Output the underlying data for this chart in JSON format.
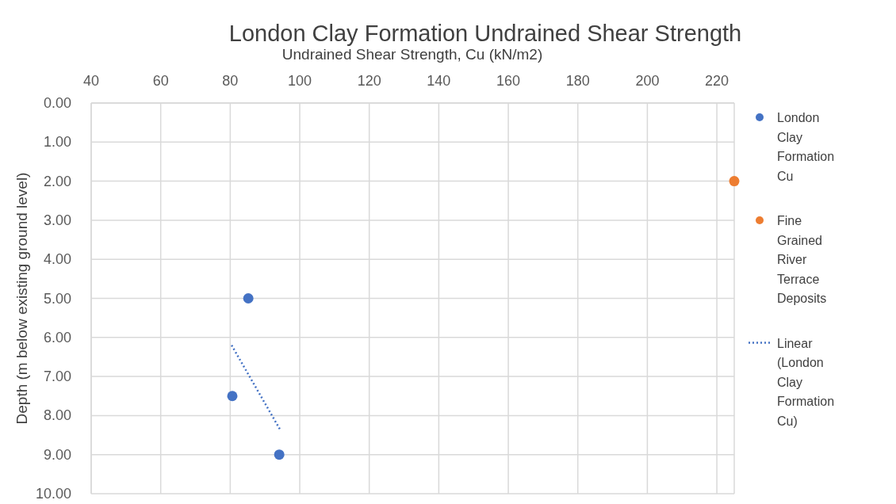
{
  "chart_data": {
    "type": "scatter",
    "title": "London Clay Formation Undrained Shear Strength",
    "xlabel": "Undrained Shear Strength, Cu (kN/m2)",
    "ylabel": "Depth (m below existing ground level)",
    "xlim": [
      40,
      225
    ],
    "xticks": [
      40,
      60,
      80,
      100,
      120,
      140,
      160,
      180,
      200,
      220
    ],
    "ylim": [
      10,
      0
    ],
    "yticks": [
      {
        "value": 0,
        "label": "0.00"
      },
      {
        "value": 1,
        "label": "1.00"
      },
      {
        "value": 2,
        "label": "2.00"
      },
      {
        "value": 3,
        "label": "3.00"
      },
      {
        "value": 4,
        "label": "4.00"
      },
      {
        "value": 5,
        "label": "5.00"
      },
      {
        "value": 6,
        "label": "6.00"
      },
      {
        "value": 7,
        "label": "7.00"
      },
      {
        "value": 8,
        "label": "8.00"
      },
      {
        "value": 9,
        "label": "9.00"
      },
      {
        "value": 10,
        "label": "10.00"
      }
    ],
    "grid": true,
    "legend": "right",
    "marker": "circle",
    "series": [
      {
        "name": "London Clay Formation Cu",
        "color": "#4472c4",
        "x": [
          85.2,
          80.6,
          94.1
        ],
        "values": [
          5.0,
          7.5,
          9.0
        ]
      },
      {
        "name": "Fine Grained River Terrace Deposits",
        "color": "#ed7d31",
        "x": [
          225
        ],
        "values": [
          2.0
        ]
      },
      {
        "name": "Linear (London Clay Formation Cu)",
        "type": "line",
        "color": "#4472c4",
        "line_style": "dotted",
        "marker": "none",
        "x": [
          80.4,
          94.6
        ],
        "values": [
          6.2,
          8.4
        ]
      }
    ]
  }
}
